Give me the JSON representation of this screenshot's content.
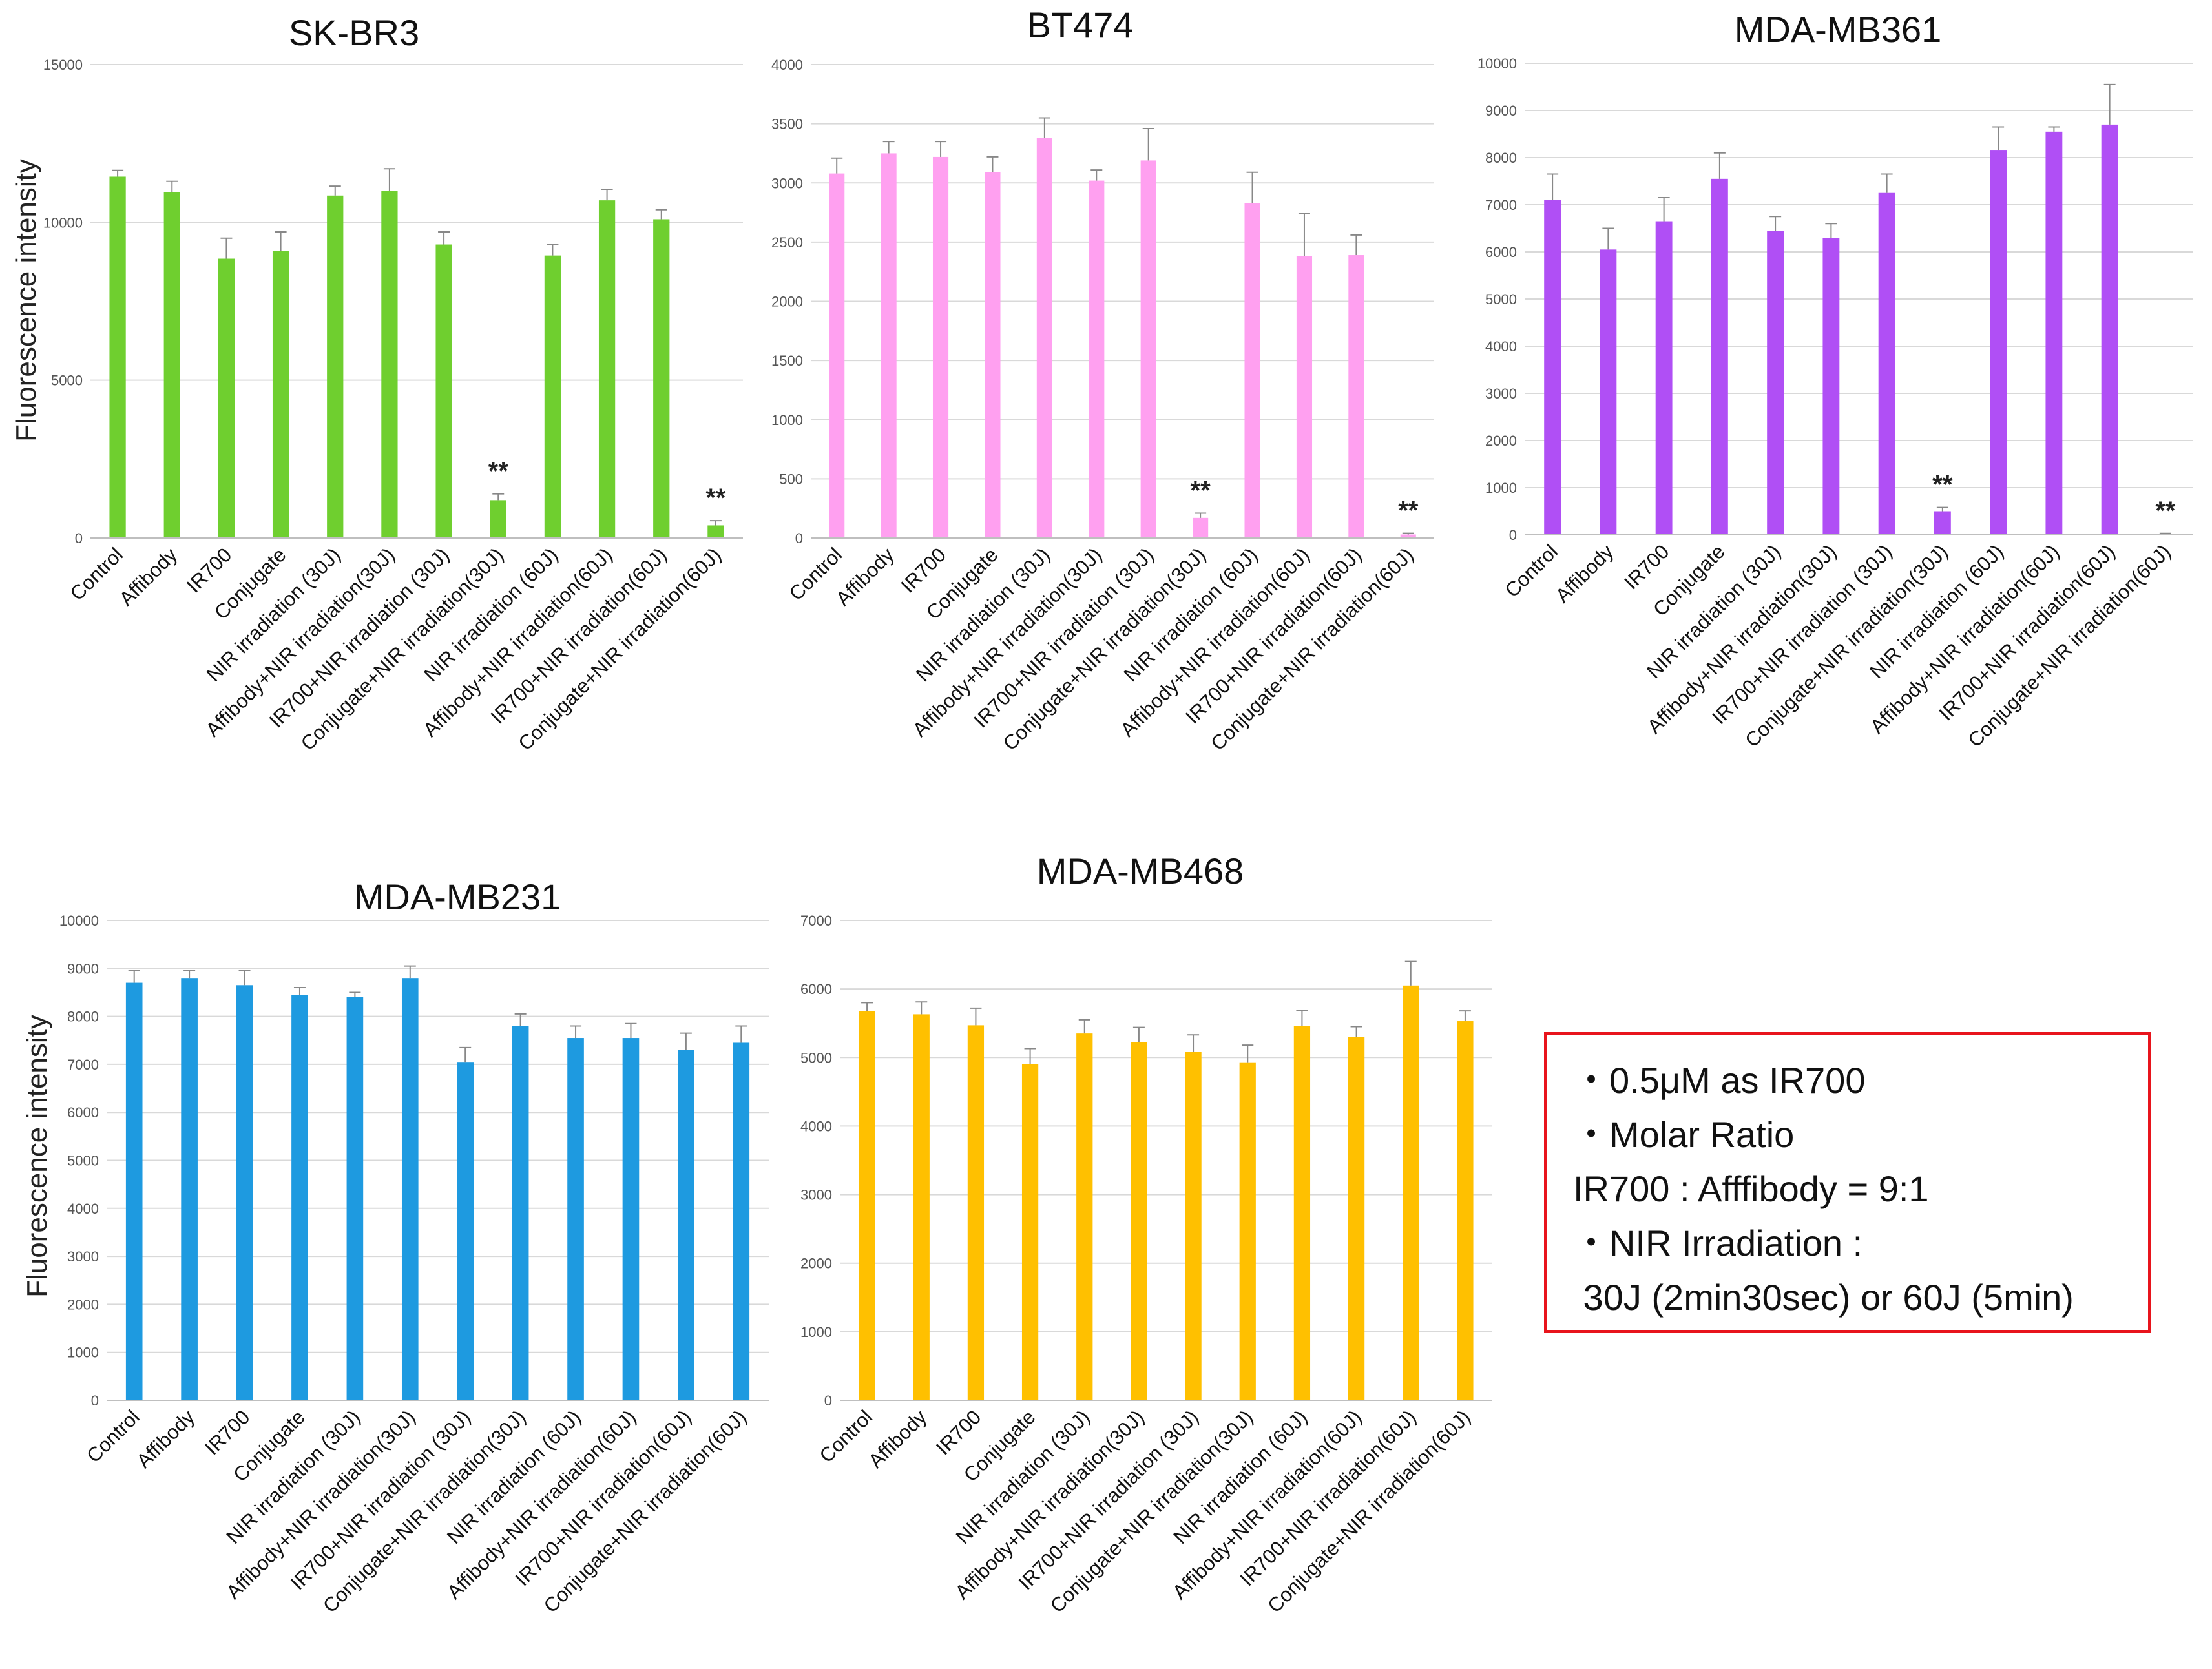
{
  "chart_data": [
    {
      "type": "bar",
      "title": "SK-BR3",
      "ylabel": "Fluorescence intensity",
      "ylim": [
        0,
        15000
      ],
      "yticks": [
        0,
        5000,
        10000,
        15000
      ],
      "color": "#6fcf2f",
      "categories": [
        "Control",
        "Affibody",
        "IR700",
        "Conjugate",
        "NIR irradiation (30J)",
        "Affibody+NIR irradiation(30J)",
        "IR700+NIR irradiation (30J)",
        "Conjugate+NIR irradiation(30J)",
        "NIR irradiation (60J)",
        "Affibody+NIR irradiation(60J)",
        "IR700+NIR irradiation(60J)",
        "Conjugate+NIR irradiation(60J)"
      ],
      "values": [
        11450,
        10950,
        8850,
        9100,
        10850,
        11000,
        9300,
        1200,
        8950,
        10700,
        10100,
        400
      ],
      "errors": [
        200,
        350,
        650,
        600,
        300,
        700,
        400,
        200,
        350,
        350,
        300,
        150
      ],
      "annotations": [
        {
          "index": 7,
          "text": "**"
        },
        {
          "index": 11,
          "text": "**"
        }
      ]
    },
    {
      "type": "bar",
      "title": "BT474",
      "ylabel": "",
      "ylim": [
        0,
        4000
      ],
      "yticks": [
        0,
        500,
        1000,
        1500,
        2000,
        2500,
        3000,
        3500,
        4000
      ],
      "color": "#ffa0f0",
      "categories": [
        "Control",
        "Affibody",
        "IR700",
        "Conjugate",
        "NIR irradiation (30J)",
        "Affibody+NIR irradiation(30J)",
        "IR700+NIR irradiation (30J)",
        "Conjugate+NIR irradiation(30J)",
        "NIR irradiation (60J)",
        "Affibody+NIR irradiation(60J)",
        "IR700+NIR irradiation(60J)",
        "Conjugate+NIR irradiation(60J)"
      ],
      "values": [
        3080,
        3250,
        3220,
        3090,
        3380,
        3020,
        3190,
        170,
        2830,
        2380,
        2390,
        30
      ],
      "errors": [
        130,
        100,
        130,
        130,
        170,
        90,
        270,
        40,
        260,
        360,
        170,
        10
      ],
      "annotations": [
        {
          "index": 7,
          "text": "**"
        },
        {
          "index": 11,
          "text": "**"
        }
      ]
    },
    {
      "type": "bar",
      "title": "MDA-MB361",
      "ylabel": "",
      "ylim": [
        0,
        10000
      ],
      "yticks": [
        0,
        1000,
        2000,
        3000,
        4000,
        5000,
        6000,
        7000,
        8000,
        9000,
        10000
      ],
      "color": "#b04ff5",
      "categories": [
        "Control",
        "Affibody",
        "IR700",
        "Conjugate",
        "NIR irradiation (30J)",
        "Affibody+NIR irradiation(30J)",
        "IR700+NIR irradiation (30J)",
        "Conjugate+NIR irradiation(30J)",
        "NIR irradiation (60J)",
        "Affibody+NIR irradiation(60J)",
        "IR700+NIR irradiation(60J)",
        "Conjugate+NIR irradiation(60J)"
      ],
      "values": [
        7100,
        6050,
        6650,
        7550,
        6450,
        6300,
        7250,
        500,
        8150,
        8550,
        8700,
        20
      ],
      "errors": [
        550,
        450,
        500,
        550,
        300,
        300,
        400,
        80,
        500,
        100,
        850,
        10
      ],
      "annotations": [
        {
          "index": 7,
          "text": "**"
        },
        {
          "index": 11,
          "text": "**"
        }
      ]
    },
    {
      "type": "bar",
      "title": "MDA-MB231",
      "ylabel": "Fluorescence intensity",
      "ylim": [
        0,
        10000
      ],
      "yticks": [
        0,
        1000,
        2000,
        3000,
        4000,
        5000,
        6000,
        7000,
        8000,
        9000,
        10000
      ],
      "color": "#1e9ae0",
      "categories": [
        "Control",
        "Affibody",
        "IR700",
        "Conjugate",
        "NIR irradiation (30J)",
        "Affibody+NIR irradiation(30J)",
        "IR700+NIR irradiation (30J)",
        "Conjugate+NIR irradiation(30J)",
        "NIR irradiation (60J)",
        "Affibody+NIR irradiation(60J)",
        "IR700+NIR irradiation(60J)",
        "Conjugate+NIR irradiation(60J)"
      ],
      "values": [
        8700,
        8800,
        8650,
        8450,
        8400,
        8800,
        7050,
        7800,
        7550,
        7550,
        7300,
        7450
      ],
      "errors": [
        250,
        150,
        300,
        150,
        100,
        250,
        300,
        250,
        250,
        300,
        350,
        350
      ],
      "annotations": []
    },
    {
      "type": "bar",
      "title": "MDA-MB468",
      "ylabel": "",
      "ylim": [
        0,
        7000
      ],
      "yticks": [
        0,
        1000,
        2000,
        3000,
        4000,
        5000,
        6000,
        7000
      ],
      "color": "#ffc000",
      "categories": [
        "Control",
        "Affibody",
        "IR700",
        "Conjugate",
        "NIR irradiation (30J)",
        "Affibody+NIR irradiation(30J)",
        "IR700+NIR irradiation (30J)",
        "Conjugate+NIR irradiation(30J)",
        "NIR irradiation (60J)",
        "Affibody+NIR irradiation(60J)",
        "IR700+NIR irradiation(60J)",
        "Conjugate+NIR irradiation(60J)"
      ],
      "values": [
        5680,
        5630,
        5470,
        4900,
        5350,
        5220,
        5080,
        4930,
        5460,
        5300,
        6050,
        5530
      ],
      "errors": [
        120,
        180,
        250,
        230,
        200,
        220,
        250,
        250,
        230,
        150,
        350,
        150
      ],
      "annotations": []
    }
  ],
  "notes": {
    "lines": [
      "・0.5μM as IR700",
      "・Molar Ratio",
      "IR700 : Afffibody = 9:1",
      "・NIR Irradiation :",
      " 30J (2min30sec) or 60J (5min)"
    ]
  }
}
